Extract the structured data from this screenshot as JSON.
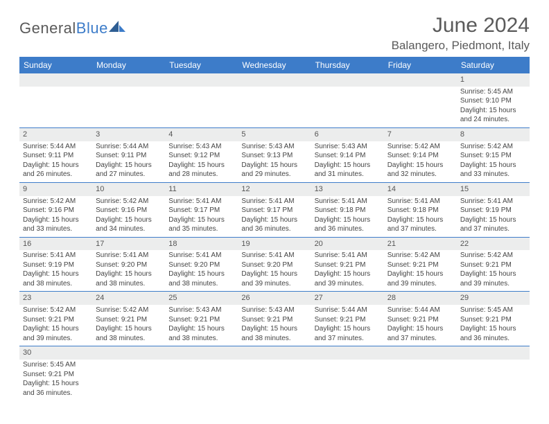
{
  "brand": {
    "text1": "General",
    "text2": "Blue",
    "text_color": "#5a5a5a",
    "blue_color": "#3d7cc9"
  },
  "title": "June 2024",
  "location": "Balangero, Piedmont, Italy",
  "header_bg": "#3d7cc9",
  "day_headers": [
    "Sunday",
    "Monday",
    "Tuesday",
    "Wednesday",
    "Thursday",
    "Friday",
    "Saturday"
  ],
  "weeks": [
    [
      null,
      null,
      null,
      null,
      null,
      null,
      {
        "n": "1",
        "sr": "5:45 AM",
        "ss": "9:10 PM",
        "dl": "15 hours and 24 minutes."
      }
    ],
    [
      {
        "n": "2",
        "sr": "5:44 AM",
        "ss": "9:11 PM",
        "dl": "15 hours and 26 minutes."
      },
      {
        "n": "3",
        "sr": "5:44 AM",
        "ss": "9:11 PM",
        "dl": "15 hours and 27 minutes."
      },
      {
        "n": "4",
        "sr": "5:43 AM",
        "ss": "9:12 PM",
        "dl": "15 hours and 28 minutes."
      },
      {
        "n": "5",
        "sr": "5:43 AM",
        "ss": "9:13 PM",
        "dl": "15 hours and 29 minutes."
      },
      {
        "n": "6",
        "sr": "5:43 AM",
        "ss": "9:14 PM",
        "dl": "15 hours and 31 minutes."
      },
      {
        "n": "7",
        "sr": "5:42 AM",
        "ss": "9:14 PM",
        "dl": "15 hours and 32 minutes."
      },
      {
        "n": "8",
        "sr": "5:42 AM",
        "ss": "9:15 PM",
        "dl": "15 hours and 33 minutes."
      }
    ],
    [
      {
        "n": "9",
        "sr": "5:42 AM",
        "ss": "9:16 PM",
        "dl": "15 hours and 33 minutes."
      },
      {
        "n": "10",
        "sr": "5:42 AM",
        "ss": "9:16 PM",
        "dl": "15 hours and 34 minutes."
      },
      {
        "n": "11",
        "sr": "5:41 AM",
        "ss": "9:17 PM",
        "dl": "15 hours and 35 minutes."
      },
      {
        "n": "12",
        "sr": "5:41 AM",
        "ss": "9:17 PM",
        "dl": "15 hours and 36 minutes."
      },
      {
        "n": "13",
        "sr": "5:41 AM",
        "ss": "9:18 PM",
        "dl": "15 hours and 36 minutes."
      },
      {
        "n": "14",
        "sr": "5:41 AM",
        "ss": "9:18 PM",
        "dl": "15 hours and 37 minutes."
      },
      {
        "n": "15",
        "sr": "5:41 AM",
        "ss": "9:19 PM",
        "dl": "15 hours and 37 minutes."
      }
    ],
    [
      {
        "n": "16",
        "sr": "5:41 AM",
        "ss": "9:19 PM",
        "dl": "15 hours and 38 minutes."
      },
      {
        "n": "17",
        "sr": "5:41 AM",
        "ss": "9:20 PM",
        "dl": "15 hours and 38 minutes."
      },
      {
        "n": "18",
        "sr": "5:41 AM",
        "ss": "9:20 PM",
        "dl": "15 hours and 38 minutes."
      },
      {
        "n": "19",
        "sr": "5:41 AM",
        "ss": "9:20 PM",
        "dl": "15 hours and 39 minutes."
      },
      {
        "n": "20",
        "sr": "5:41 AM",
        "ss": "9:21 PM",
        "dl": "15 hours and 39 minutes."
      },
      {
        "n": "21",
        "sr": "5:42 AM",
        "ss": "9:21 PM",
        "dl": "15 hours and 39 minutes."
      },
      {
        "n": "22",
        "sr": "5:42 AM",
        "ss": "9:21 PM",
        "dl": "15 hours and 39 minutes."
      }
    ],
    [
      {
        "n": "23",
        "sr": "5:42 AM",
        "ss": "9:21 PM",
        "dl": "15 hours and 39 minutes."
      },
      {
        "n": "24",
        "sr": "5:42 AM",
        "ss": "9:21 PM",
        "dl": "15 hours and 38 minutes."
      },
      {
        "n": "25",
        "sr": "5:43 AM",
        "ss": "9:21 PM",
        "dl": "15 hours and 38 minutes."
      },
      {
        "n": "26",
        "sr": "5:43 AM",
        "ss": "9:21 PM",
        "dl": "15 hours and 38 minutes."
      },
      {
        "n": "27",
        "sr": "5:44 AM",
        "ss": "9:21 PM",
        "dl": "15 hours and 37 minutes."
      },
      {
        "n": "28",
        "sr": "5:44 AM",
        "ss": "9:21 PM",
        "dl": "15 hours and 37 minutes."
      },
      {
        "n": "29",
        "sr": "5:45 AM",
        "ss": "9:21 PM",
        "dl": "15 hours and 36 minutes."
      }
    ],
    [
      {
        "n": "30",
        "sr": "5:45 AM",
        "ss": "9:21 PM",
        "dl": "15 hours and 36 minutes."
      },
      null,
      null,
      null,
      null,
      null,
      null
    ]
  ],
  "labels": {
    "sunrise": "Sunrise:",
    "sunset": "Sunset:",
    "daylight": "Daylight:"
  }
}
